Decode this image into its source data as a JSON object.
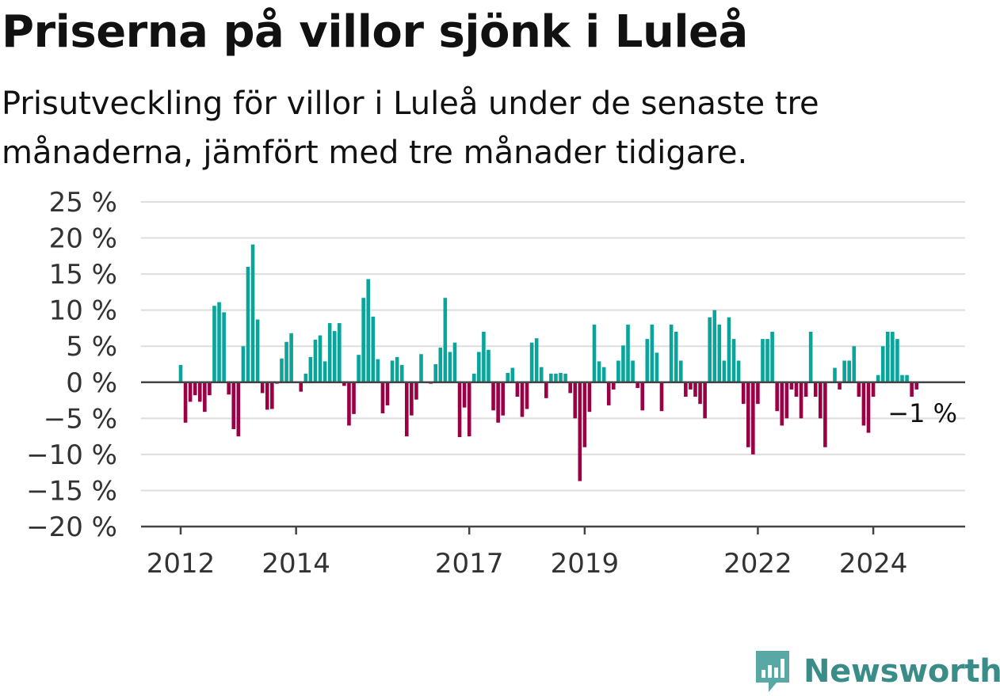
{
  "title": "Priserna på villor sjönk i Luleå",
  "subtitle": "Prisutveckling för villor i Luleå under de senaste tre månaderna, jämfört med tre månader tidigare.",
  "brand": "Newsworthy",
  "colors": {
    "positive": "#0aa59a",
    "negative": "#9c0044",
    "grid": "#dddddd",
    "axis": "#444444",
    "brand": "#3a8c89"
  },
  "chart_data": {
    "type": "bar",
    "x_start": "2012-01",
    "x_end": "2024-12",
    "x_ticks": [
      {
        "label": "2012",
        "date": "2012-01"
      },
      {
        "label": "2014",
        "date": "2014-01"
      },
      {
        "label": "2017",
        "date": "2017-01"
      },
      {
        "label": "2019",
        "date": "2019-01"
      },
      {
        "label": "2022",
        "date": "2022-01"
      },
      {
        "label": "2024",
        "date": "2024-01"
      }
    ],
    "ylim": [
      -20,
      25
    ],
    "y_ticks": [
      {
        "value": 25,
        "label": "25 %"
      },
      {
        "value": 20,
        "label": "20 %"
      },
      {
        "value": 15,
        "label": "15 %"
      },
      {
        "value": 10,
        "label": "10 %"
      },
      {
        "value": 5,
        "label": "5 %"
      },
      {
        "value": 0,
        "label": "0 %"
      },
      {
        "value": -5,
        "label": "−5 %"
      },
      {
        "value": -10,
        "label": "−10 %"
      },
      {
        "value": -15,
        "label": "−15 %"
      },
      {
        "value": -20,
        "label": "−20 %"
      }
    ],
    "grid": true,
    "last_value_label": "−1 %",
    "values": [
      2.4,
      -5.6,
      -2.7,
      -1.8,
      -2.7,
      -4.1,
      -1.8,
      10.6,
      11.1,
      9.7,
      -1.7,
      -6.5,
      -7.5,
      5.0,
      16.0,
      19.1,
      8.7,
      -1.5,
      -3.8,
      -3.7,
      -0.2,
      3.3,
      5.6,
      6.8,
      0.0,
      -1.3,
      1.2,
      3.5,
      5.9,
      6.5,
      2.9,
      8.2,
      7.1,
      8.2,
      -0.5,
      -6.0,
      -4.4,
      3.8,
      11.7,
      14.3,
      9.1,
      3.2,
      -4.3,
      -3.2,
      3.0,
      3.5,
      2.4,
      -7.5,
      -4.6,
      -2.4,
      3.9,
      0.0,
      -0.2,
      2.5,
      4.8,
      11.7,
      4.2,
      5.5,
      -7.6,
      -3.5,
      -7.5,
      1.2,
      4.2,
      7.0,
      4.5,
      -3.9,
      -5.6,
      -4.6,
      1.3,
      2.0,
      -2.0,
      -4.8,
      -3.7,
      5.5,
      6.1,
      2.1,
      -2.2,
      1.2,
      1.2,
      1.3,
      1.2,
      -1.5,
      -5.0,
      -13.7,
      -9.0,
      -4.1,
      8.0,
      2.9,
      2.1,
      -3.2,
      -1.0,
      3.0,
      5.1,
      8.0,
      3.0,
      -0.8,
      -3.9,
      6.0,
      8.0,
      4.1,
      -4.0,
      0.0,
      8.0,
      7.0,
      3.0,
      -2.0,
      -1.0,
      -2.0,
      -3.0,
      -5.0,
      9.0,
      10.0,
      8.0,
      3.0,
      9.0,
      6.0,
      3.0,
      -3.0,
      -9.0,
      -10.0,
      -3.0,
      6.0,
      6.0,
      7.0,
      -4.0,
      -6.0,
      -5.0,
      -1.0,
      -2.0,
      -5.0,
      -2.0,
      7.0,
      -2.0,
      -5.0,
      -9.0,
      0.0,
      2.0,
      -1.0,
      3.0,
      3.0,
      5.0,
      -2.0,
      -6.0,
      -7.0,
      -2.0,
      1.0,
      5.0,
      7.0,
      7.0,
      6.0,
      1.0,
      1.0,
      -2.0,
      -1.0
    ]
  }
}
